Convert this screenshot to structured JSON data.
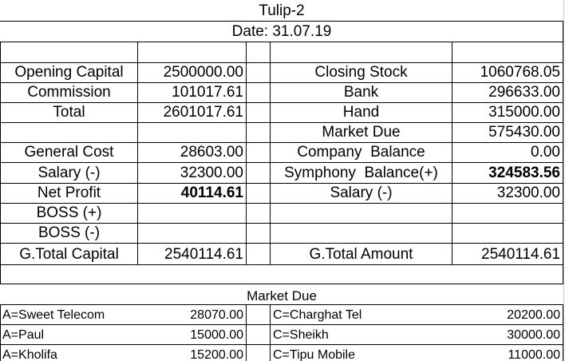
{
  "header": {
    "title": "Tulip-2",
    "date": "Date: 31.07.19"
  },
  "left": [
    {
      "label": "Opening Capital",
      "value": "2500000.00"
    },
    {
      "label": "Commission",
      "value": "101017.61"
    },
    {
      "label": "Total",
      "value": "2601017.61"
    },
    {
      "label": "",
      "value": ""
    },
    {
      "label": "General Cost",
      "value": "28603.00"
    },
    {
      "label": "Salary (-)",
      "value": "32300.00"
    },
    {
      "label": "Net Profit",
      "value": "40114.61"
    },
    {
      "label": "BOSS (+)",
      "value": ""
    },
    {
      "label": "BOSS (-)",
      "value": ""
    },
    {
      "label": "G.Total Capital",
      "value": "2540114.61"
    }
  ],
  "right": [
    {
      "label": "Closing Stock",
      "value": "1060768.05"
    },
    {
      "label": "Bank",
      "value": "296633.00"
    },
    {
      "label": "Hand",
      "value": "315000.00"
    },
    {
      "label": "Market Due",
      "value": "575430.00"
    },
    {
      "label": "Company  Balance",
      "value": "0.00"
    },
    {
      "label": "Symphony  Balance(+)",
      "value": "324583.56"
    },
    {
      "label": "Salary (-)",
      "value": "32300.00"
    },
    {
      "label": "",
      "value": ""
    },
    {
      "label": "",
      "value": ""
    },
    {
      "label": "G.Total Amount",
      "value": "2540114.61"
    }
  ],
  "market_due": {
    "title": "Market Due",
    "rows": [
      {
        "left_name": "A=Sweet Telecom",
        "left_value": "28070.00",
        "right_name": "C=Charghat Tel",
        "right_value": "20200.00"
      },
      {
        "left_name": "A=Paul",
        "left_value": "15000.00",
        "right_name": "C=Sheikh",
        "right_value": "30000.00"
      },
      {
        "left_name": "A=Kholifa",
        "left_value": "15200.00",
        "right_name": "C=Tipu Mobile",
        "right_value": "11000.00"
      }
    ]
  }
}
